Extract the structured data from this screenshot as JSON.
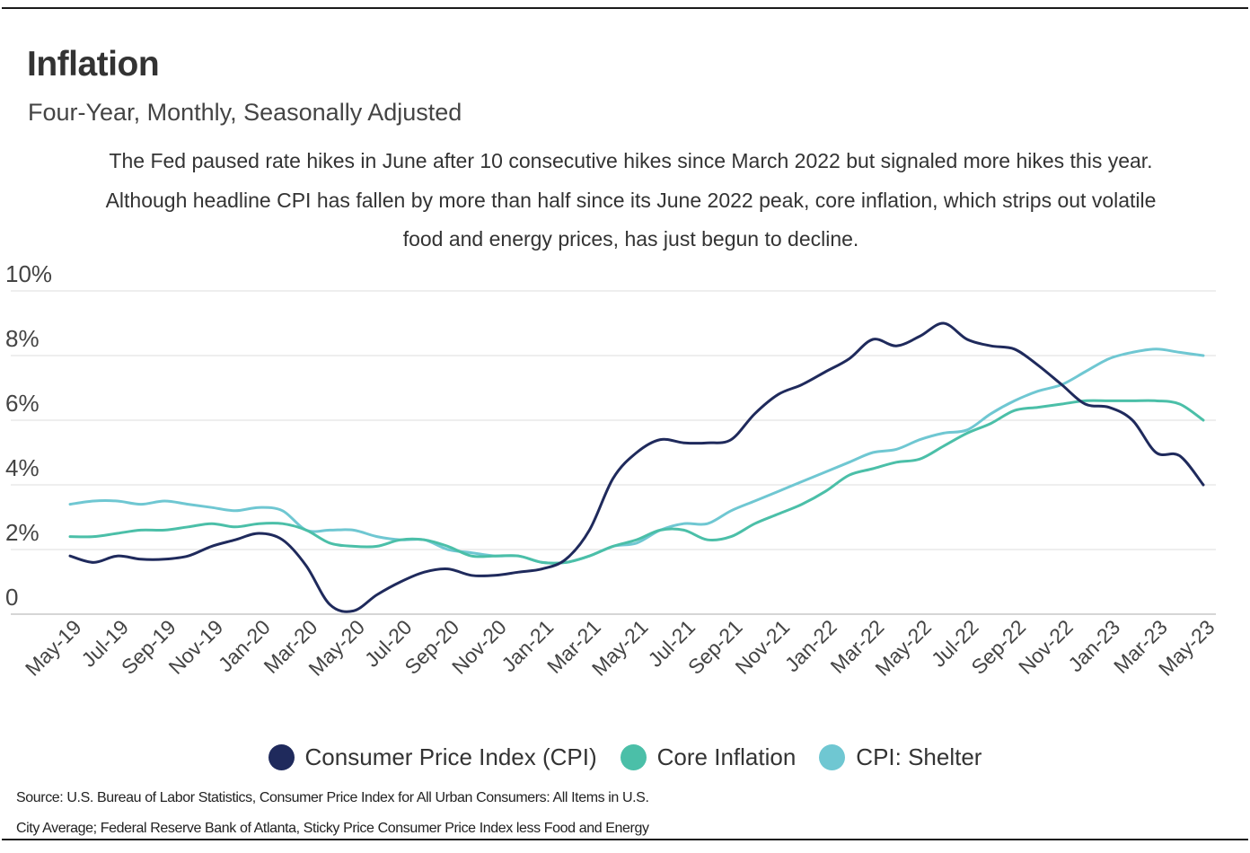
{
  "header": {
    "title": "Inflation",
    "subtitle": "Four-Year, Monthly, Seasonally Adjusted",
    "description_lines": [
      "The Fed paused rate hikes in June after 10 consecutive hikes since March 2022 but signaled more hikes this year.",
      "Although headline CPI has fallen by more than half since its June 2022 peak, core inflation, which strips out volatile",
      "food and energy prices, has just begun to decline."
    ]
  },
  "source_lines": [
    "Source:  U.S. Bureau of Labor Statistics, Consumer Price Index for All Urban Consumers: All Items in U.S.",
    "City Average; Federal Reserve Bank of Atlanta, Sticky Price Consumer Price Index less Food and Energy"
  ],
  "chart_data": {
    "type": "line",
    "title": "Inflation",
    "subtitle": "Four-Year, Monthly, Seasonally Adjusted",
    "xlabel": "",
    "ylabel": "",
    "ylim": [
      0,
      10
    ],
    "y_ticks": [
      0,
      2,
      4,
      6,
      8,
      10
    ],
    "y_tick_labels": [
      "0",
      "2%",
      "4%",
      "6%",
      "8%",
      "10%"
    ],
    "grid": true,
    "legend_position": "bottom",
    "x_tick_labels": [
      "May-19",
      "Jul-19",
      "Sep-19",
      "Nov-19",
      "Jan-20",
      "Mar-20",
      "May-20",
      "Jul-20",
      "Sep-20",
      "Nov-20",
      "Jan-21",
      "Mar-21",
      "May-21",
      "Jul-21",
      "Sep-21",
      "Nov-21",
      "Jan-22",
      "Mar-22",
      "May-22",
      "Jul-22",
      "Sep-22",
      "Nov-22",
      "Jan-23",
      "Mar-23",
      "May-23"
    ],
    "categories": [
      "May-19",
      "Jun-19",
      "Jul-19",
      "Aug-19",
      "Sep-19",
      "Oct-19",
      "Nov-19",
      "Dec-19",
      "Jan-20",
      "Feb-20",
      "Mar-20",
      "Apr-20",
      "May-20",
      "Jun-20",
      "Jul-20",
      "Aug-20",
      "Sep-20",
      "Oct-20",
      "Nov-20",
      "Dec-20",
      "Jan-21",
      "Feb-21",
      "Mar-21",
      "Apr-21",
      "May-21",
      "Jun-21",
      "Jul-21",
      "Aug-21",
      "Sep-21",
      "Oct-21",
      "Nov-21",
      "Dec-21",
      "Jan-22",
      "Feb-22",
      "Mar-22",
      "Apr-22",
      "May-22",
      "Jun-22",
      "Jul-22",
      "Aug-22",
      "Sep-22",
      "Oct-22",
      "Nov-22",
      "Dec-22",
      "Jan-23",
      "Feb-23",
      "Mar-23",
      "Apr-23",
      "May-23"
    ],
    "series": [
      {
        "name": "Consumer Price Index (CPI)",
        "color": "#1f2a5c",
        "values": [
          1.8,
          1.6,
          1.8,
          1.7,
          1.7,
          1.8,
          2.1,
          2.3,
          2.5,
          2.3,
          1.5,
          0.3,
          0.1,
          0.6,
          1.0,
          1.3,
          1.4,
          1.2,
          1.2,
          1.3,
          1.4,
          1.7,
          2.6,
          4.2,
          5.0,
          5.4,
          5.3,
          5.3,
          5.4,
          6.2,
          6.8,
          7.1,
          7.5,
          7.9,
          8.5,
          8.3,
          8.6,
          9.0,
          8.5,
          8.3,
          8.2,
          7.7,
          7.1,
          6.5,
          6.4,
          6.0,
          5.0,
          4.9,
          4.0
        ]
      },
      {
        "name": "Core Inflation",
        "color": "#4bbfa8",
        "values": [
          2.4,
          2.4,
          2.5,
          2.6,
          2.6,
          2.7,
          2.8,
          2.7,
          2.8,
          2.8,
          2.6,
          2.2,
          2.1,
          2.1,
          2.3,
          2.3,
          2.1,
          1.8,
          1.8,
          1.8,
          1.6,
          1.6,
          1.8,
          2.1,
          2.3,
          2.6,
          2.6,
          2.3,
          2.4,
          2.8,
          3.1,
          3.4,
          3.8,
          4.3,
          4.5,
          4.7,
          4.8,
          5.2,
          5.6,
          5.9,
          6.3,
          6.4,
          6.5,
          6.6,
          6.6,
          6.6,
          6.6,
          6.5,
          6.0
        ]
      },
      {
        "name": "CPI: Shelter",
        "color": "#6fc7d2",
        "values": [
          3.4,
          3.5,
          3.5,
          3.4,
          3.5,
          3.4,
          3.3,
          3.2,
          3.3,
          3.2,
          2.6,
          2.6,
          2.6,
          2.4,
          2.3,
          2.3,
          2.0,
          1.9,
          1.8,
          1.8,
          1.6,
          1.6,
          1.8,
          2.1,
          2.2,
          2.6,
          2.8,
          2.8,
          3.2,
          3.5,
          3.8,
          4.1,
          4.4,
          4.7,
          5.0,
          5.1,
          5.4,
          5.6,
          5.7,
          6.2,
          6.6,
          6.9,
          7.1,
          7.5,
          7.9,
          8.1,
          8.2,
          8.1,
          8.0
        ]
      }
    ]
  }
}
